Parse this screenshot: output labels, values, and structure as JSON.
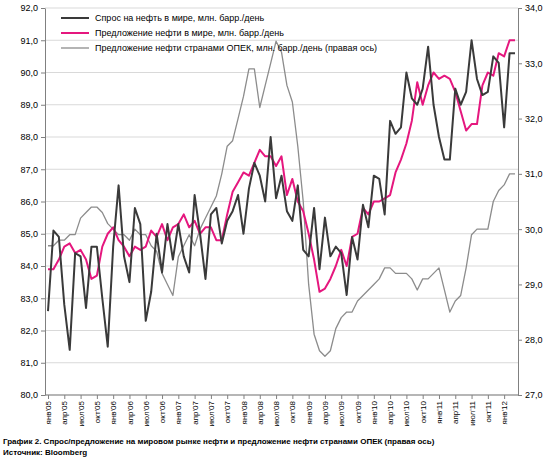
{
  "chart_data": {
    "type": "line",
    "title": "График 2. Спрос/предложение на мировом рынке нефти и предложение нефти странами ОПЕК (правая ось)",
    "source": "Источник: Bloomberg",
    "categories": [
      "янв'05",
      null,
      null,
      "апр'05",
      null,
      null,
      "июл'05",
      null,
      null,
      "окт'05",
      null,
      null,
      "янв'06",
      null,
      null,
      "апр'06",
      null,
      null,
      "июл'06",
      null,
      null,
      "окт'06",
      null,
      null,
      "янв'07",
      null,
      null,
      "апр'07",
      null,
      null,
      "июл'07",
      null,
      null,
      "окт'07",
      null,
      null,
      "янв'08",
      null,
      null,
      "апр'08",
      null,
      null,
      "июл'08",
      null,
      null,
      "окт'08",
      null,
      null,
      "янв'09",
      null,
      null,
      "апр'09",
      null,
      null,
      "июл'09",
      null,
      null,
      "окт'09",
      null,
      null,
      "янв'10",
      null,
      null,
      "апр'10",
      null,
      null,
      "июл'10",
      null,
      null,
      "окт'10",
      null,
      null,
      "янв'11",
      null,
      null,
      "апр'11",
      null,
      null,
      "июл'11",
      null,
      null,
      "окт'11",
      null,
      null,
      "янв'12",
      null,
      null
    ],
    "series": [
      {
        "name": "Спрос на нефть в мире, млн. барр./день",
        "color": "#3a3a3a",
        "values": [
          82.6,
          85.1,
          84.9,
          82.8,
          81.4,
          84.4,
          84.3,
          82.7,
          84.6,
          84.6,
          83.0,
          81.5,
          84.6,
          86.5,
          84.3,
          83.5,
          85.8,
          85.3,
          82.3,
          83.2,
          85.0,
          83.8,
          85.3,
          84.2,
          85.3,
          84.3,
          83.8,
          86.2,
          85.0,
          83.6,
          85.6,
          85.8,
          84.7,
          85.4,
          85.7,
          86.2,
          85.0,
          86.4,
          87.2,
          86.8,
          86.0,
          88.0,
          86.1,
          86.8,
          85.7,
          85.4,
          86.5,
          84.5,
          84.3,
          85.8,
          83.9,
          85.5,
          84.3,
          84.6,
          84.4,
          83.1,
          84.9,
          84.2,
          85.9,
          85.2,
          86.8,
          86.7,
          85.6,
          88.5,
          88.1,
          88.3,
          90.0,
          89.2,
          89.0,
          89.5,
          90.8,
          89.0,
          88.0,
          87.3,
          87.3,
          89.5,
          89.0,
          89.4,
          91.0,
          89.8,
          89.3,
          89.4,
          90.5,
          90.3,
          88.3,
          90.6,
          90.6
        ]
      },
      {
        "name": "Предложение нефти в мире, млн. барр./день",
        "color": "#e5177e",
        "values": [
          83.9,
          83.9,
          84.2,
          84.6,
          84.7,
          84.4,
          84.5,
          84.2,
          83.6,
          83.7,
          84.6,
          85.0,
          85.2,
          84.8,
          84.6,
          84.3,
          84.6,
          84.5,
          84.6,
          85.1,
          84.9,
          85.3,
          84.8,
          85.2,
          85.3,
          85.6,
          85.2,
          85.4,
          85.0,
          85.2,
          85.2,
          84.8,
          84.8,
          85.6,
          86.3,
          86.6,
          86.9,
          86.8,
          87.2,
          87.6,
          87.4,
          87.4,
          87.1,
          87.4,
          86.2,
          86.7,
          86.0,
          85.7,
          85.0,
          84.2,
          83.2,
          83.3,
          83.6,
          84.0,
          84.5,
          84.0,
          84.9,
          85.0,
          85.8,
          85.6,
          86.0,
          86.0,
          86.1,
          86.2,
          86.9,
          87.3,
          87.8,
          88.5,
          89.7,
          89.0,
          89.6,
          90.0,
          89.8,
          89.9,
          89.8,
          89.4,
          88.8,
          88.2,
          88.4,
          88.4,
          89.6,
          90.0,
          89.9,
          90.6,
          90.5,
          91.0,
          91.0
        ]
      },
      {
        "name": "Предложение нефти странами ОПЕК, млн. барр./день (правая ось)",
        "color": "#8c8c8c",
        "axis": "y2",
        "values": [
          29.7,
          29.7,
          29.8,
          29.8,
          29.9,
          29.9,
          30.2,
          30.3,
          30.4,
          30.4,
          30.3,
          30.1,
          30.0,
          29.9,
          29.9,
          29.8,
          30.0,
          29.9,
          29.9,
          29.7,
          29.6,
          29.2,
          29.0,
          28.8,
          29.5,
          29.7,
          29.9,
          29.7,
          30.0,
          30.2,
          30.4,
          30.6,
          31.0,
          31.5,
          31.6,
          32.0,
          32.4,
          32.9,
          32.9,
          32.2,
          32.6,
          33.0,
          33.4,
          33.2,
          32.6,
          32.3,
          31.5,
          30.5,
          29.0,
          28.1,
          27.8,
          27.7,
          27.8,
          28.2,
          28.4,
          28.5,
          28.5,
          28.7,
          28.8,
          28.9,
          29.0,
          29.1,
          29.3,
          29.3,
          29.2,
          29.2,
          29.2,
          29.1,
          28.9,
          29.1,
          29.1,
          29.2,
          29.3,
          28.9,
          28.5,
          28.7,
          28.8,
          29.3,
          29.9,
          30.0,
          30.0,
          30.0,
          30.5,
          30.7,
          30.8,
          31.0,
          31.0
        ]
      }
    ],
    "ylim": [
      80,
      92
    ],
    "yticks": [
      {
        "value": 80,
        "label": "80,0"
      },
      {
        "value": 81,
        "label": "81,0"
      },
      {
        "value": 82,
        "label": "82,0"
      },
      {
        "value": 83,
        "label": "83,0"
      },
      {
        "value": 84,
        "label": "84,0"
      },
      {
        "value": 85,
        "label": "85,0"
      },
      {
        "value": 86,
        "label": "86,0"
      },
      {
        "value": 87,
        "label": "87,0"
      },
      {
        "value": 88,
        "label": "88,0"
      },
      {
        "value": 89,
        "label": "89,0"
      },
      {
        "value": 90,
        "label": "90,0"
      },
      {
        "value": 91,
        "label": "91,0"
      },
      {
        "value": 92,
        "label": "92,0"
      }
    ],
    "y2lim": [
      27,
      34
    ],
    "y2ticks": [
      {
        "value": 27,
        "label": "27,0"
      },
      {
        "value": 28,
        "label": "28,0"
      },
      {
        "value": 29,
        "label": "29,0"
      },
      {
        "value": 30,
        "label": "30,0"
      },
      {
        "value": 31,
        "label": "31,0"
      },
      {
        "value": 32,
        "label": "32,0"
      },
      {
        "value": 33,
        "label": "33,0"
      },
      {
        "value": 34,
        "label": "34,0"
      }
    ],
    "grid": true,
    "legend": "upper-left"
  }
}
